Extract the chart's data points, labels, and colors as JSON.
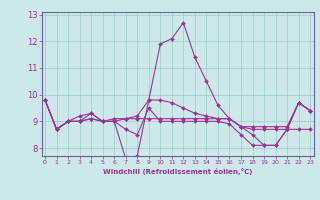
{
  "xlabel": "Windchill (Refroidissement éolien,°C)",
  "background_color": "#cce8e8",
  "line_color": "#993399",
  "grid_color": "#99cccc",
  "spine_color": "#666699",
  "x_ticks": [
    0,
    1,
    2,
    3,
    4,
    5,
    6,
    7,
    8,
    9,
    10,
    11,
    12,
    13,
    14,
    15,
    16,
    17,
    18,
    19,
    20,
    21,
    22,
    23
  ],
  "y_ticks": [
    8,
    9,
    10,
    11,
    12,
    13
  ],
  "xlim": [
    -0.3,
    23.3
  ],
  "ylim": [
    7.7,
    13.1
  ],
  "series": [
    [
      9.8,
      8.7,
      9.0,
      9.0,
      9.3,
      9.0,
      9.0,
      7.6,
      7.7,
      9.8,
      11.9,
      12.1,
      12.7,
      11.4,
      10.5,
      9.6,
      9.1,
      8.8,
      8.5,
      8.1,
      8.1,
      8.7,
      9.7,
      9.4
    ],
    [
      9.8,
      8.7,
      9.0,
      9.0,
      9.1,
      9.0,
      9.0,
      9.1,
      9.1,
      9.1,
      9.1,
      9.1,
      9.1,
      9.1,
      9.1,
      9.1,
      9.1,
      8.8,
      8.7,
      8.7,
      8.7,
      8.7,
      8.7,
      8.7
    ],
    [
      9.8,
      8.7,
      9.0,
      9.0,
      9.1,
      9.0,
      9.0,
      8.7,
      8.5,
      9.5,
      9.0,
      9.0,
      9.0,
      9.0,
      9.0,
      9.0,
      8.9,
      8.5,
      8.1,
      8.1,
      8.1,
      8.7,
      9.7,
      9.4
    ],
    [
      9.8,
      8.7,
      9.0,
      9.2,
      9.3,
      9.0,
      9.1,
      9.1,
      9.2,
      9.8,
      9.8,
      9.7,
      9.5,
      9.3,
      9.2,
      9.1,
      9.1,
      8.8,
      8.8,
      8.8,
      8.8,
      8.8,
      9.7,
      9.4
    ]
  ]
}
